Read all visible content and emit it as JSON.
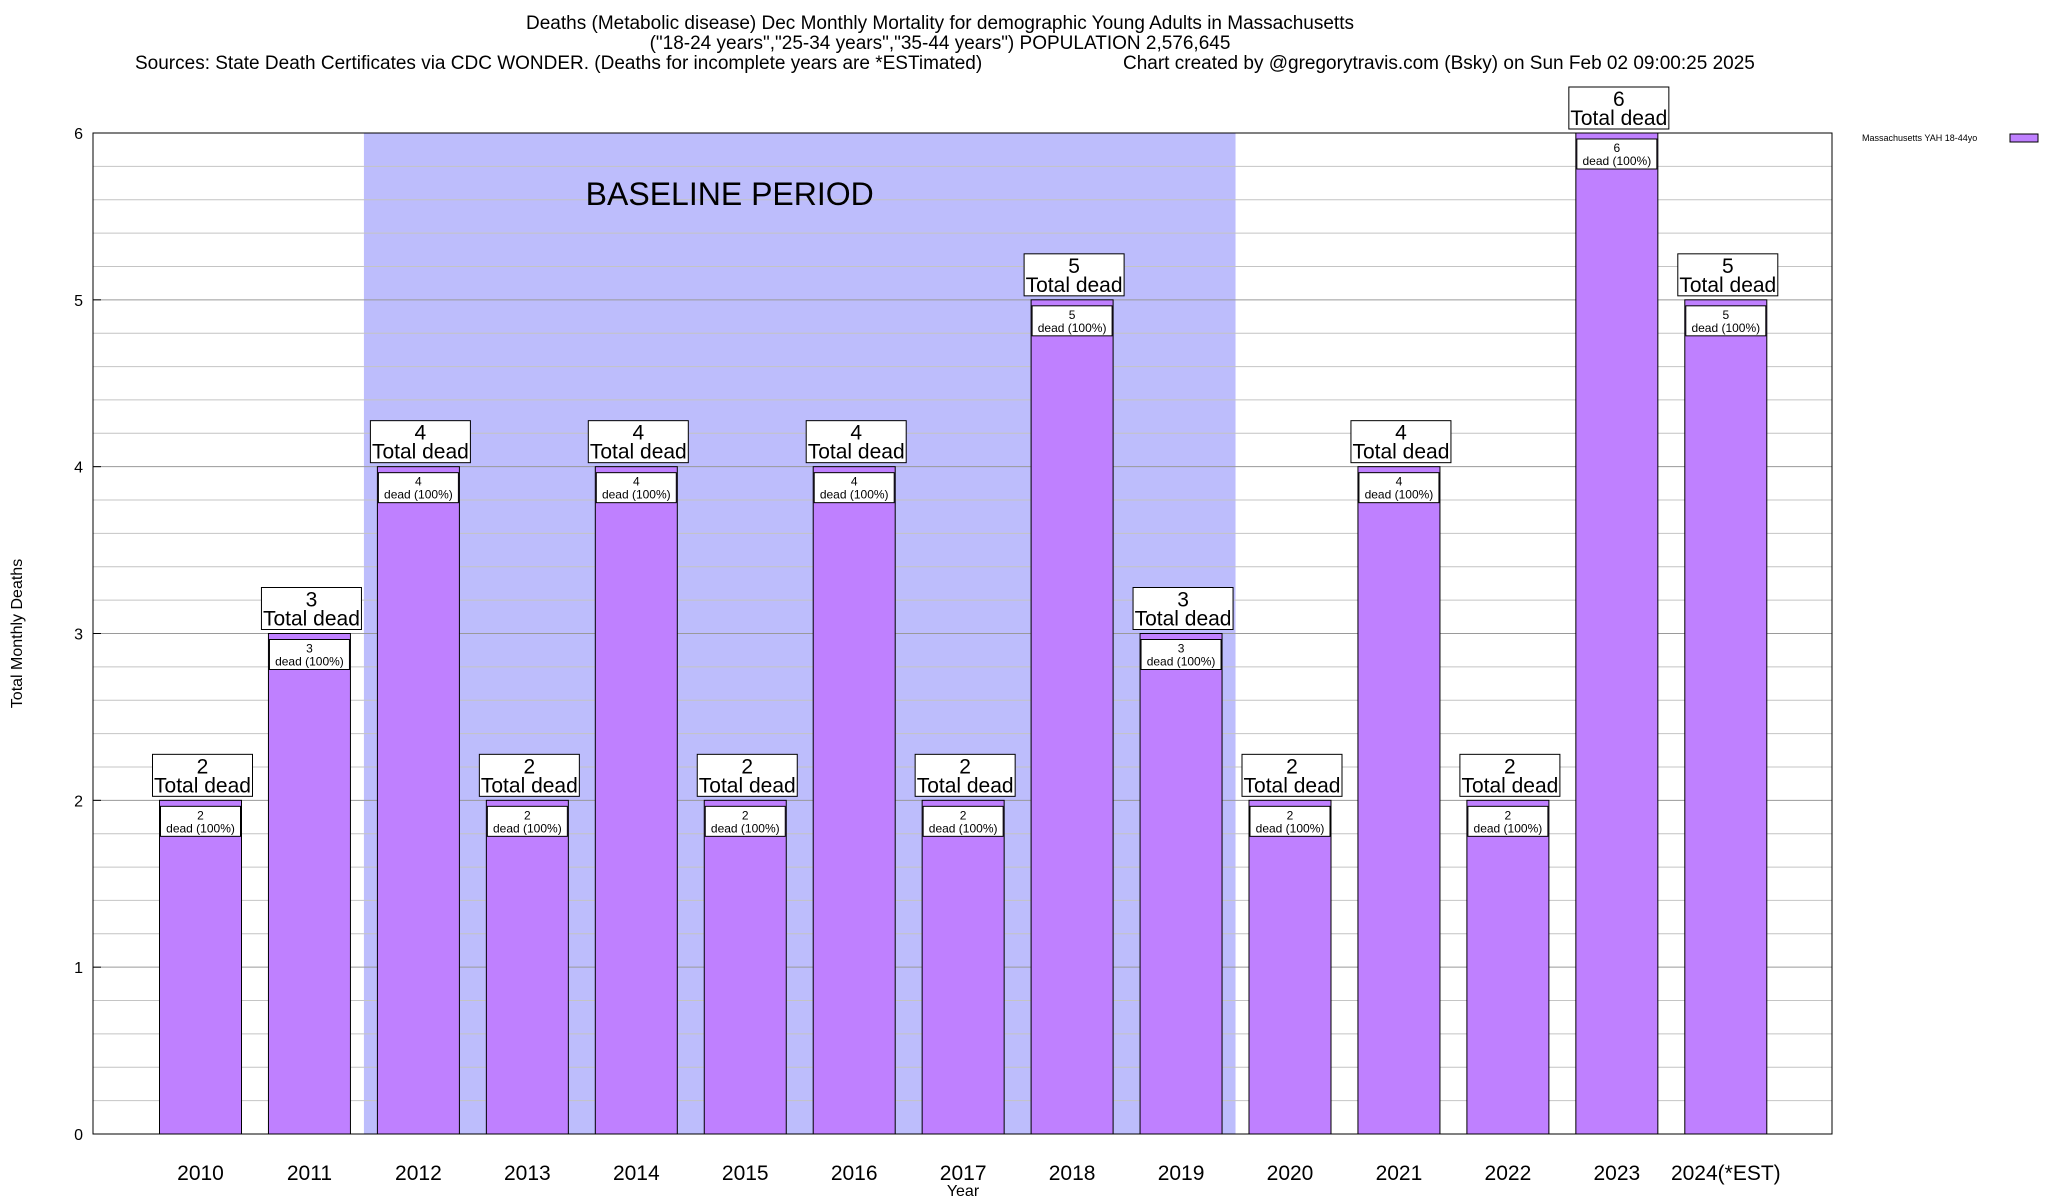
{
  "chart_data": {
    "type": "bar",
    "title": "Deaths (Metabolic disease) Dec Monthly Mortality for demographic Young Adults in Massachusetts",
    "subtitle": "(\"18-24 years\",\"25-34 years\",\"35-44 years\") POPULATION 2,576,645",
    "sources": "Sources: State Death Certificates via CDC WONDER. (Deaths for incomplete years are *ESTimated)",
    "credit": "Chart created by @gregorytravis.com (Bsky) on Sun Feb 02 09:00:25 2025",
    "xlabel": "Year",
    "ylabel": "Total Monthly Deaths",
    "ylim": [
      0,
      6
    ],
    "y_ticks": [
      0,
      1,
      2,
      3,
      4,
      5,
      6
    ],
    "grid": true,
    "legend_placement": "top-right",
    "categories": [
      "2010",
      "2011",
      "2012",
      "2013",
      "2014",
      "2015",
      "2016",
      "2017",
      "2018",
      "2019",
      "2020",
      "2021",
      "2022",
      "2023",
      "2024(*EST)"
    ],
    "series": [
      {
        "name": "Massachusetts YAH 18-44yo",
        "color": "#bf80ff",
        "values": [
          2,
          3,
          4,
          2,
          4,
          2,
          4,
          2,
          5,
          3,
          2,
          4,
          2,
          6,
          5
        ]
      }
    ],
    "total_label": "Total dead",
    "inner_labels": [
      "2\ndead (100%)",
      "3\ndead (100%)",
      "4\ndead (100%)",
      "2\ndead (100%)",
      "4\ndead (100%)",
      "2\ndead (100%)",
      "4\ndead (100%)",
      "2\ndead (100%)",
      "5\ndead (100%)",
      "3\ndead (100%)",
      "2\ndead (100%)",
      "4\ndead (100%)",
      "2\ndead (100%)",
      "6\ndead (100%)",
      "5\ndead (100%)"
    ],
    "baseline": {
      "label": "BASELINE PERIOD",
      "from": "2012",
      "to": "2019",
      "color": "#bdbdfc"
    },
    "bar_color": "#bf80ff"
  }
}
